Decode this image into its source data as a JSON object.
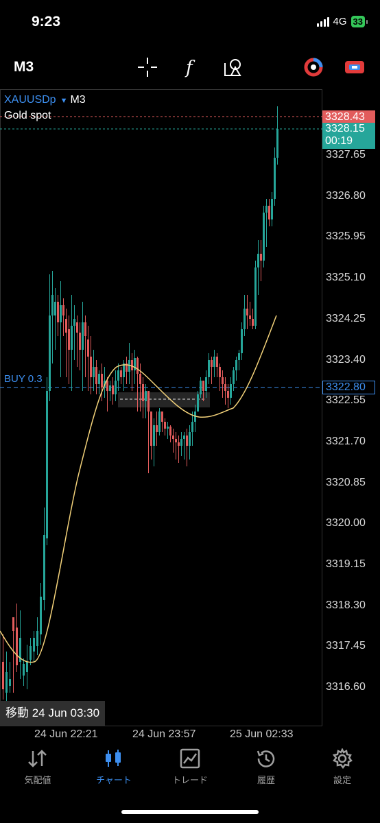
{
  "status": {
    "time": "9:23",
    "network": "4G",
    "battery": "33"
  },
  "toolbar": {
    "timeframe": "M3",
    "icons": [
      "crosshair-icon",
      "function-icon",
      "objects-icon",
      "mt-logo-icon",
      "trade-icon"
    ]
  },
  "chart": {
    "symbol": "XAUUSDp",
    "timeframe": "M3",
    "description": "Gold spot",
    "buy_label": "BUY 0.3",
    "bid_price": "3328.43",
    "ask_price": "3328.15",
    "countdown": "00:19",
    "buy_price": "3322.80",
    "price_levels": [
      "3327.65",
      "3326.80",
      "3325.95",
      "3325.10",
      "3324.25",
      "3323.40",
      "3322.55",
      "3321.70",
      "3320.85",
      "3320.00",
      "3319.15",
      "3318.30",
      "3317.45",
      "3316.60"
    ],
    "time_labels": [
      "24 Jun 22:21",
      "24 Jun 23:57",
      "25 Jun 02:33"
    ],
    "crosshair_label": "移動 24 Jun 03:30",
    "colors": {
      "up": "#26a69a",
      "down": "#e25c5c",
      "ma": "#f3d27a",
      "buy": "#3d8ff0"
    }
  },
  "nav": [
    {
      "label": "気配値",
      "icon": "quotes-icon",
      "active": false
    },
    {
      "label": "チャート",
      "icon": "chart-icon",
      "active": true
    },
    {
      "label": "トレード",
      "icon": "trade-icon",
      "active": false
    },
    {
      "label": "履歴",
      "icon": "history-icon",
      "active": false
    },
    {
      "label": "設定",
      "icon": "settings-icon",
      "active": false
    }
  ]
}
